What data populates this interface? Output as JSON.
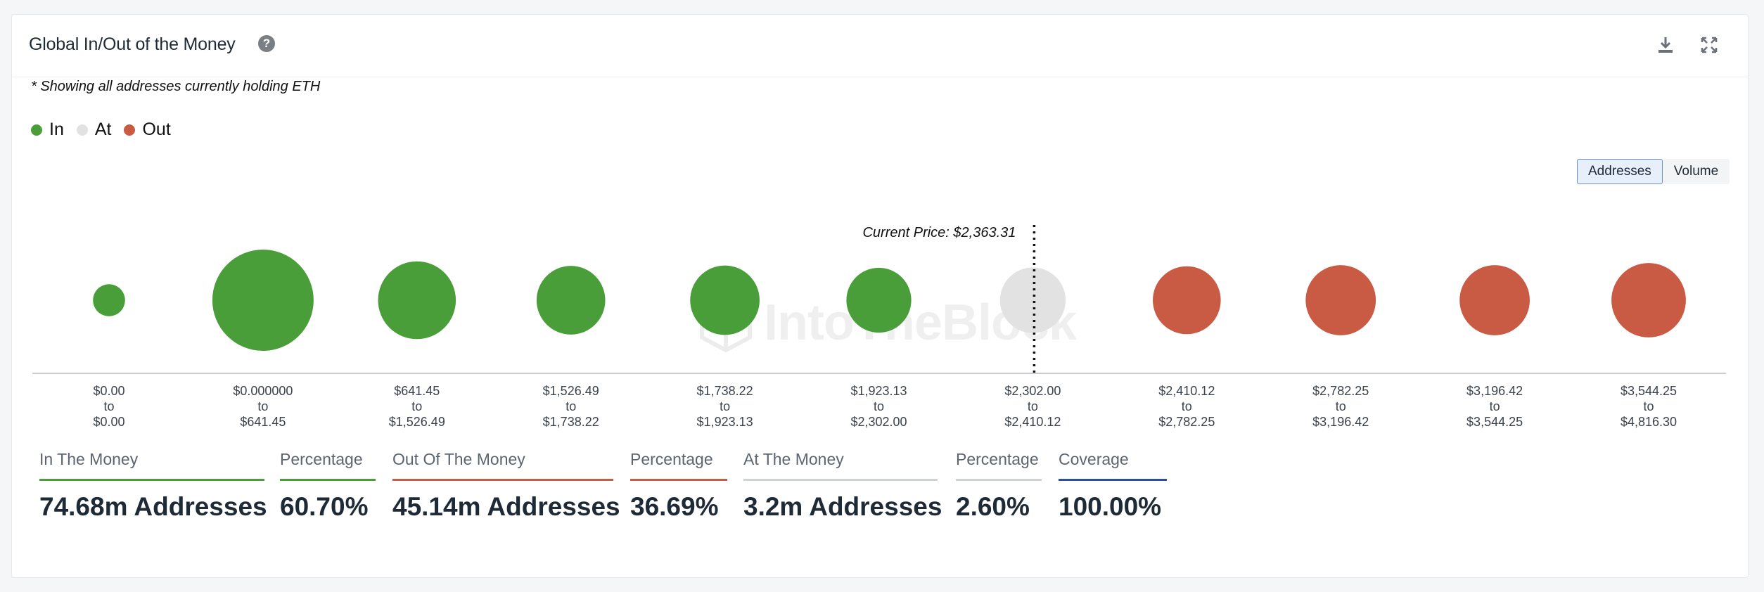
{
  "header": {
    "title": "Global In/Out of the Money",
    "help_icon": "?"
  },
  "note": "* Showing all addresses currently holding ETH",
  "legend": [
    {
      "label": "In",
      "color": "#4a9e3a"
    },
    {
      "label": "At",
      "color": "#e2e2e2"
    },
    {
      "label": "Out",
      "color": "#c95a43"
    }
  ],
  "toggle": {
    "addresses_label": "Addresses",
    "volume_label": "Volume",
    "active": "Addresses"
  },
  "watermark": "IntoTheBlock",
  "chart_data": {
    "type": "bubble",
    "title": "Global In/Out of the Money",
    "current_price_label": "Current Price: $2,363.31",
    "current_price": 2363.31,
    "buckets": [
      {
        "from": "$0.00",
        "to": "$0.00",
        "status": "In",
        "relative_size": 0.1
      },
      {
        "from": "$0.000000",
        "to": "$641.45",
        "status": "In",
        "relative_size": 1.0
      },
      {
        "from": "$641.45",
        "to": "$1,526.49",
        "status": "In",
        "relative_size": 0.59
      },
      {
        "from": "$1,526.49",
        "to": "$1,738.22",
        "status": "In",
        "relative_size": 0.46
      },
      {
        "from": "$1,738.22",
        "to": "$1,923.13",
        "status": "In",
        "relative_size": 0.47
      },
      {
        "from": "$1,923.13",
        "to": "$2,302.00",
        "status": "In",
        "relative_size": 0.41
      },
      {
        "from": "$2,302.00",
        "to": "$2,410.12",
        "status": "At",
        "relative_size": 0.42
      },
      {
        "from": "$2,410.12",
        "to": "$2,782.25",
        "status": "Out",
        "relative_size": 0.45
      },
      {
        "from": "$2,782.25",
        "to": "$3,196.42",
        "status": "Out",
        "relative_size": 0.48
      },
      {
        "from": "$3,196.42",
        "to": "$3,544.25",
        "status": "Out",
        "relative_size": 0.48
      },
      {
        "from": "$3,544.25",
        "to": "$4,816.30",
        "status": "Out",
        "relative_size": 0.54
      }
    ],
    "tick_connector": "to"
  },
  "stats": [
    {
      "label": "In The Money",
      "value": "74.68m Addresses",
      "color": "#4a9e3a"
    },
    {
      "label": "Percentage",
      "value": "60.70%",
      "color": "#4a9e3a"
    },
    {
      "label": "Out Of The Money",
      "value": "45.14m Addresses",
      "color": "#c95a43"
    },
    {
      "label": "Percentage",
      "value": "36.69%",
      "color": "#c95a43"
    },
    {
      "label": "At The Money",
      "value": "3.2m Addresses",
      "color": "#cfd2d6"
    },
    {
      "label": "Percentage",
      "value": "2.60%",
      "color": "#cfd2d6"
    },
    {
      "label": "Coverage",
      "value": "100.00%",
      "color": "#2a4fa8"
    }
  ]
}
